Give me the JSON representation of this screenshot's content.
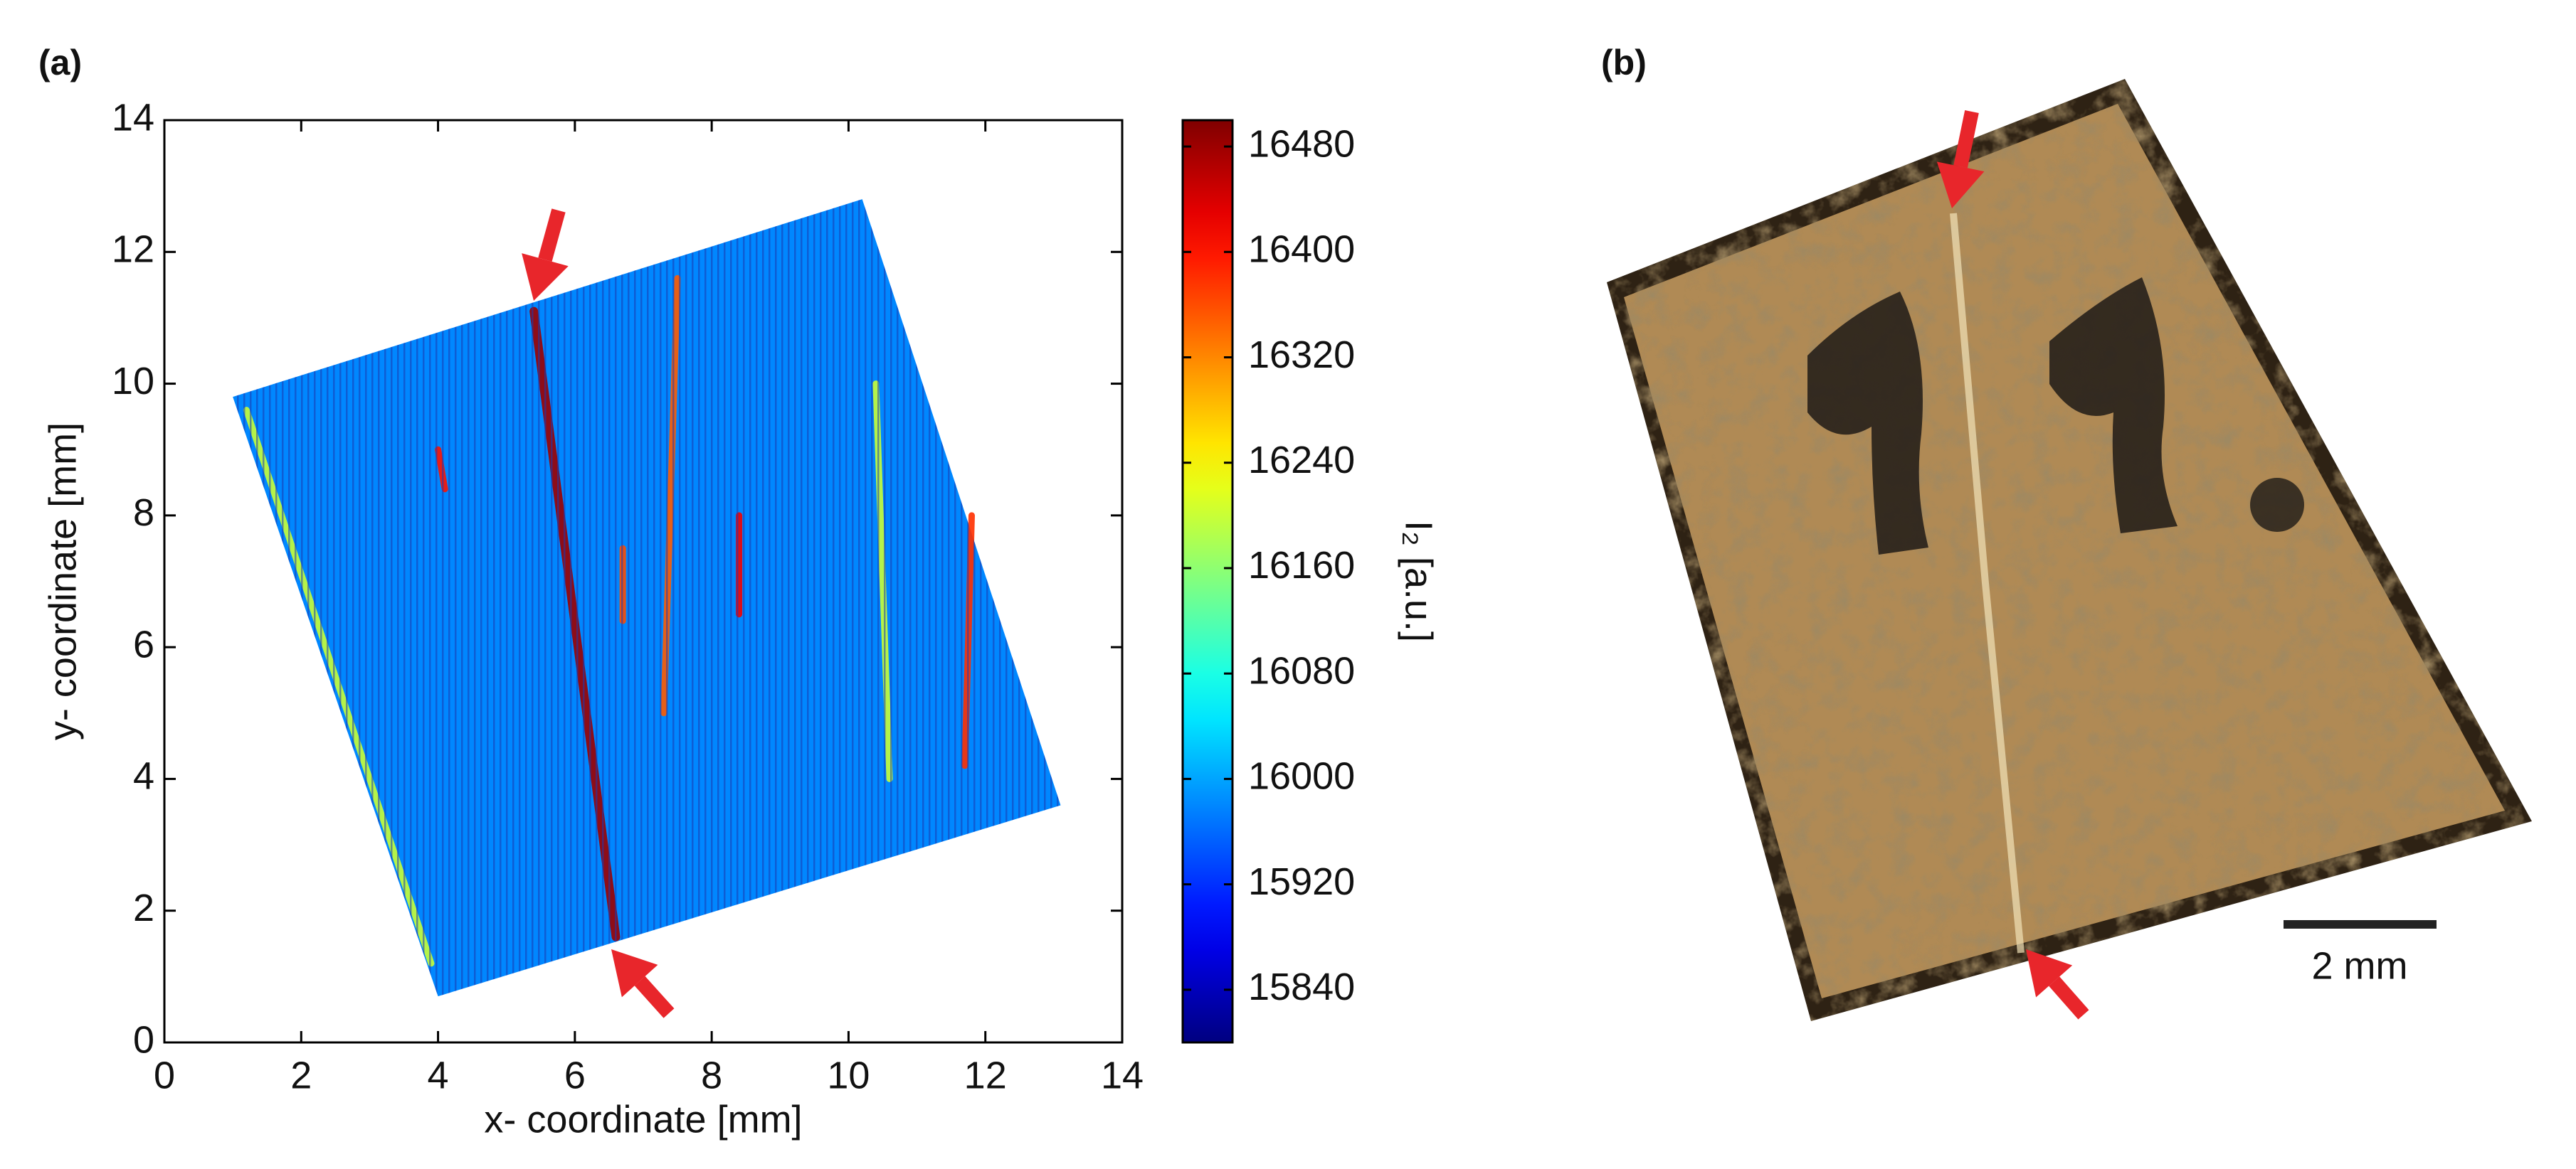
{
  "panels": {
    "a": "(a)",
    "b": "(b)"
  },
  "chart_data": {
    "type": "heatmap",
    "xlabel": "x- coordinate [mm]",
    "ylabel": "y- coordinate [mm]",
    "colorbar_label": "I₂ [a.u.]",
    "colormap": "jet",
    "xlim": [
      0,
      14
    ],
    "xticks": [
      0,
      2,
      4,
      6,
      8,
      10,
      12,
      14
    ],
    "ylim": [
      0,
      14
    ],
    "yticks": [
      0,
      2,
      4,
      6,
      8,
      10,
      12,
      14
    ],
    "clim": [
      15800,
      16500
    ],
    "cticks": [
      15840,
      15920,
      16000,
      16080,
      16160,
      16240,
      16320,
      16400,
      16480
    ],
    "region": {
      "x": [
        1,
        10.2,
        13.1,
        4
      ],
      "y": [
        9.8,
        12.8,
        3.6,
        0.7
      ],
      "value": 15980
    },
    "stripes": [
      {
        "x": [
          5.4,
          6.6
        ],
        "y": [
          11.1,
          1.6
        ],
        "value": 16480
      },
      {
        "x": [
          1.2,
          3.9
        ],
        "y": [
          9.6,
          1.2
        ],
        "value": 16200
      },
      {
        "x": [
          7.5,
          7.3
        ],
        "y": [
          11.6,
          5.0
        ],
        "value": 16350
      },
      {
        "x": [
          10.4,
          10.6
        ],
        "y": [
          10.0,
          4.0
        ],
        "value": 16200
      },
      {
        "x": [
          11.8,
          11.7
        ],
        "y": [
          8.0,
          4.2
        ],
        "value": 16380
      },
      {
        "x": [
          8.4,
          8.4
        ],
        "y": [
          8.0,
          6.5
        ],
        "value": 16420
      },
      {
        "x": [
          4.0,
          4.1
        ],
        "y": [
          9.0,
          8.4
        ],
        "value": 16400
      },
      {
        "x": [
          6.7,
          6.7
        ],
        "y": [
          7.5,
          6.4
        ],
        "value": 16360
      }
    ]
  },
  "photo": {
    "scale_bar": "2 mm"
  }
}
